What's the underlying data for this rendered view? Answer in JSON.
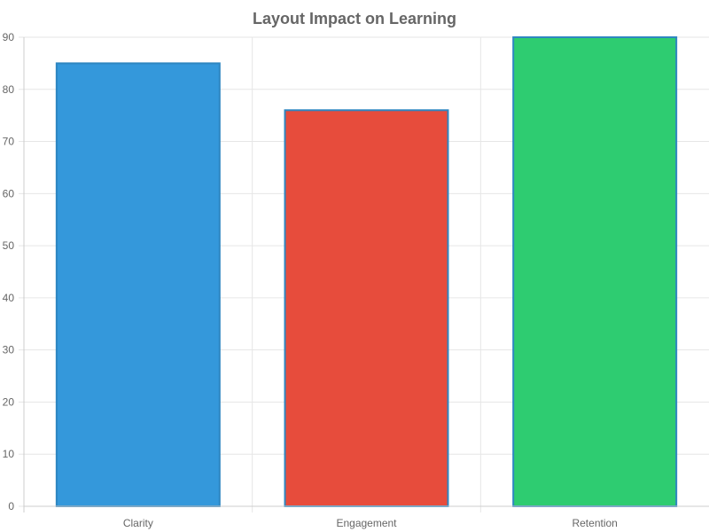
{
  "chart_data": {
    "type": "bar",
    "title": "Layout Impact on Learning",
    "categories": [
      "Clarity",
      "Engagement",
      "Retention"
    ],
    "values": [
      85,
      76,
      90
    ],
    "colors": [
      "#3498db",
      "#e74c3c",
      "#2ecc71"
    ],
    "border_color": "#2e86c1",
    "xlabel": "",
    "ylabel": "",
    "ylim": [
      0,
      90
    ],
    "yticks": [
      0,
      10,
      20,
      30,
      40,
      50,
      60,
      70,
      80,
      90
    ],
    "grid": true,
    "legend": "none"
  }
}
